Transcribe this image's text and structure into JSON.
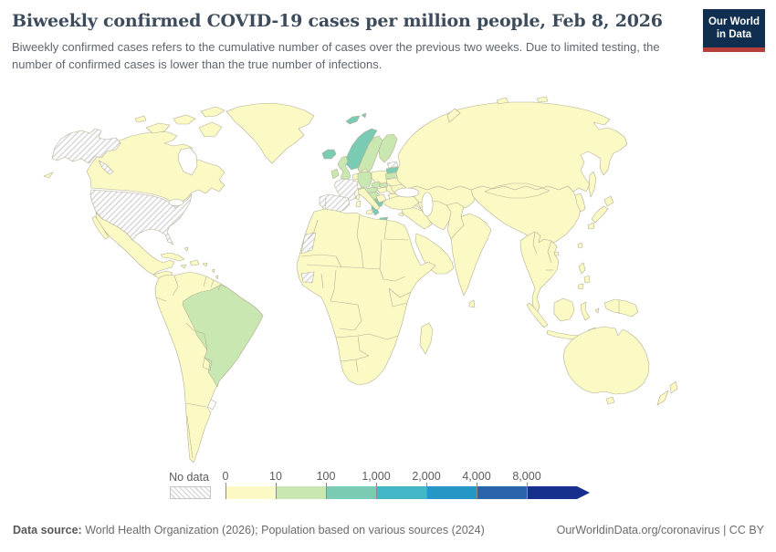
{
  "header": {
    "title": "Biweekly confirmed COVID-19 cases per million people, Feb 8, 2026",
    "subtitle": "Biweekly confirmed cases refers to the cumulative number of cases over the previous two weeks. Due to limited testing, the number of confirmed cases is lower than the true number of infections.",
    "logo_line1": "Our World",
    "logo_line2": "in Data",
    "logo_bg": "#102e4f",
    "logo_accent": "#b5413a"
  },
  "legend": {
    "no_data_label": "No data",
    "ticks": [
      "0",
      "10",
      "100",
      "1,000",
      "2,000",
      "4,000",
      "8,000"
    ],
    "colors": [
      "#fbfac5",
      "#c8e7b1",
      "#7acbb4",
      "#43b7c6",
      "#2497c6",
      "#2a64ab",
      "#17308e"
    ]
  },
  "footer": {
    "source_label": "Data source:",
    "source_text": " World Health Organization (2026); Population based on various sources (2024)",
    "origin_text": "OurWorldinData.org/coronavirus | CC BY"
  },
  "map": {
    "ocean_color": "#ffffff",
    "border_color": "#b5ae95",
    "no_data_style": "diagonal-hatch",
    "default_bin": 0,
    "regions": {
      "alaska": "nodata",
      "alaska-panhandle": "nodata",
      "united-states": "nodata",
      "france": "nodata",
      "spain-and-portugal": "nodata",
      "estonia": "nodata",
      "western-sahara": "nodata",
      "guinea": "nodata",
      "brazil": 1,
      "united-kingdom": 1,
      "ireland": 1,
      "germany": 1,
      "sweden": 1,
      "finland": 1,
      "lithuania": 1,
      "switzerland": 1,
      "czechia": 1,
      "austria": 1,
      "slovakia": 1,
      "slovenia-croatia": 1,
      "iceland": 2,
      "svalbard": 2,
      "svalbard-east": 2,
      "norway": 2,
      "latvia": 2,
      "albania-macedonia": 2,
      "greece": 2,
      "crete": 2
    }
  },
  "chart_data": {
    "type": "heatmap",
    "subtype": "choropleth-world-map",
    "title": "Biweekly confirmed COVID-19 cases per million people, Feb 8, 2026",
    "unit": "biweekly confirmed cases per million people",
    "date": "Feb 8, 2026",
    "legend_position": "bottom",
    "color_scale_bins": [
      "0–10",
      "10–100",
      "100–1,000",
      "1,000–2,000",
      "2,000–4,000",
      "4,000–8,000",
      "8,000+"
    ],
    "bin_colors": [
      "#fbfac5",
      "#c8e7b1",
      "#7acbb4",
      "#43b7c6",
      "#2497c6",
      "#2a64ab",
      "#17308e"
    ],
    "values_by_bin": {
      "no_data": [
        "United States",
        "France",
        "Spain",
        "Portugal",
        "Estonia",
        "Western Sahara",
        "Guinea"
      ],
      "0-10": [
        "Canada",
        "Greenland",
        "Mexico",
        "Central America",
        "most of South America",
        "all of Africa except hatched areas",
        "Russia",
        "China",
        "India",
        "Middle East",
        "Southeast Asia",
        "Japan",
        "Australia",
        "New Zealand",
        "Poland",
        "Italy",
        "Ukraine",
        "Romania",
        "Turkey"
      ],
      "10-100": [
        "Brazil",
        "United Kingdom",
        "Ireland",
        "Germany",
        "Sweden",
        "Finland",
        "Lithuania",
        "Switzerland",
        "Czechia",
        "Austria",
        "Slovakia",
        "Croatia",
        "Slovenia"
      ],
      "100-1000": [
        "Iceland",
        "Norway",
        "Svalbard",
        "Latvia",
        "Greece",
        "Albania"
      ]
    }
  }
}
